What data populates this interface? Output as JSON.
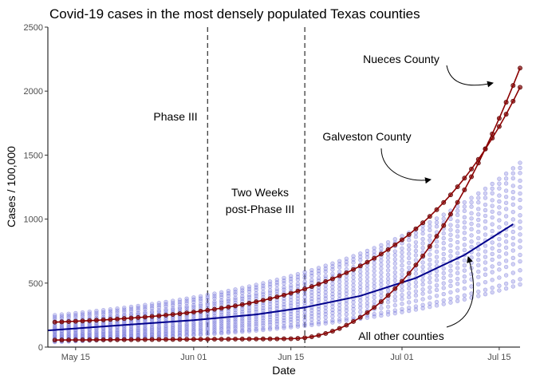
{
  "chart_data": {
    "type": "scatter",
    "title": "Covid-19 cases in the most densely populated Texas counties",
    "xlabel": "Date",
    "ylabel": "Cases / 100,000",
    "x_range": [
      "2020-05-11",
      "2020-07-18"
    ],
    "ylim": [
      0,
      2500
    ],
    "x_ticks": [
      {
        "date": "2020-05-15",
        "label": "May 15"
      },
      {
        "date": "2020-06-01",
        "label": "Jun 01"
      },
      {
        "date": "2020-06-15",
        "label": "Jun 15"
      },
      {
        "date": "2020-07-01",
        "label": "Jul 01"
      },
      {
        "date": "2020-07-15",
        "label": "Jul 15"
      }
    ],
    "y_ticks": [
      0,
      500,
      1000,
      1500,
      2000,
      2500
    ],
    "grid": false,
    "vlines": [
      {
        "date": "2020-06-03",
        "label": "Phase III"
      },
      {
        "date": "2020-06-17",
        "label": "Two Weeks post-Phase III"
      }
    ],
    "annotations": [
      {
        "text": "Nueces County"
      },
      {
        "text": "Galveston County"
      },
      {
        "text": "All other counties"
      }
    ],
    "colors": {
      "highlight_points": "#8b1a1a",
      "highlight_line": "#8b0000",
      "other_points": "#6a6ad8",
      "trend_line": "#00008b"
    },
    "series": [
      {
        "key": "nueces",
        "highlight": true,
        "start": 55,
        "end": 2180
      },
      {
        "key": "galveston",
        "highlight": true,
        "start": 195,
        "end": 2030
      },
      {
        "key": "other",
        "start": 250,
        "end": 1440
      },
      {
        "key": "other",
        "start": 235,
        "end": 1400
      },
      {
        "key": "other",
        "start": 220,
        "end": 1360
      },
      {
        "key": "other",
        "start": 200,
        "end": 1300
      },
      {
        "key": "other",
        "start": 190,
        "end": 1250
      },
      {
        "key": "other",
        "start": 175,
        "end": 1200
      },
      {
        "key": "other",
        "start": 160,
        "end": 1150
      },
      {
        "key": "other",
        "start": 150,
        "end": 1090
      },
      {
        "key": "other",
        "start": 140,
        "end": 1030
      },
      {
        "key": "other",
        "start": 125,
        "end": 980
      },
      {
        "key": "other",
        "start": 115,
        "end": 930
      },
      {
        "key": "other",
        "start": 100,
        "end": 880
      },
      {
        "key": "other",
        "start": 90,
        "end": 830
      },
      {
        "key": "other",
        "start": 80,
        "end": 780
      },
      {
        "key": "other",
        "start": 70,
        "end": 720
      },
      {
        "key": "other",
        "start": 60,
        "end": 670
      },
      {
        "key": "other",
        "start": 55,
        "end": 600
      },
      {
        "key": "other",
        "start": 45,
        "end": 530
      },
      {
        "key": "other",
        "start": 40,
        "end": 490
      }
    ],
    "trend": {
      "values": [
        {
          "date": "2020-05-11",
          "y": 130
        },
        {
          "date": "2020-05-20",
          "y": 165
        },
        {
          "date": "2020-06-01",
          "y": 210
        },
        {
          "date": "2020-06-10",
          "y": 255
        },
        {
          "date": "2020-06-17",
          "y": 310
        },
        {
          "date": "2020-06-25",
          "y": 400
        },
        {
          "date": "2020-07-03",
          "y": 540
        },
        {
          "date": "2020-07-10",
          "y": 720
        },
        {
          "date": "2020-07-17",
          "y": 960
        }
      ]
    }
  }
}
